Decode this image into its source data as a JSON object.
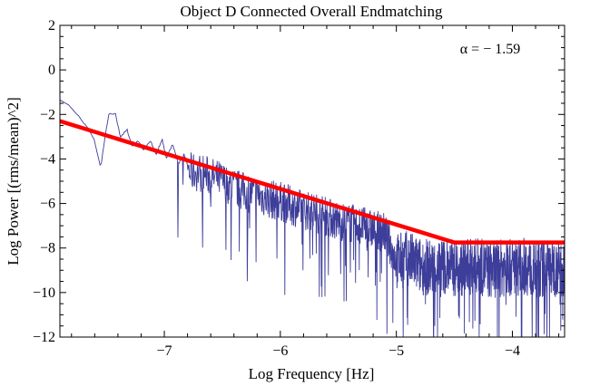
{
  "chart_data": {
    "type": "line",
    "title": "Object D Connected Overall Endmatching",
    "xlabel": "Log Frequency [Hz]",
    "ylabel": "Log Power [(rms/mean)^2]",
    "xlim": [
      -7.9,
      -3.55
    ],
    "ylim": [
      -12,
      2
    ],
    "xticks": [
      -7,
      -6,
      -5,
      -4
    ],
    "xtick_labels": [
      "−7",
      "−6",
      "−5",
      "−4"
    ],
    "yticks": [
      2,
      0,
      -2,
      -4,
      -6,
      -8,
      -10,
      -12
    ],
    "ytick_labels": [
      "2",
      "0",
      "−2",
      "−4",
      "−6",
      "−8",
      "−10",
      "−12"
    ],
    "annotation": "α = − 1.59",
    "series": [
      {
        "name": "power spectrum",
        "color": "#3d3d9a",
        "x": [
          -7.9,
          -7.78,
          -7.65,
          -7.6,
          -7.55,
          -7.48,
          -7.42,
          -7.38,
          -7.32,
          -7.28,
          -7.22,
          -7.18,
          -7.12,
          -7.07,
          -7.02,
          -6.98,
          -6.93,
          -6.88,
          -6.83,
          -6.78,
          -6.7,
          -6.6,
          -6.5,
          -6.4,
          -6.3,
          -6.2,
          -6.1,
          -6.0,
          -5.9,
          -5.8,
          -5.7,
          -5.6,
          -5.5,
          -5.4,
          -5.3,
          -5.2,
          -5.1,
          -5.0,
          -4.9,
          -4.8,
          -4.7,
          -4.6,
          -4.5,
          -4.4,
          -4.3,
          -4.2,
          -4.1,
          -4.0,
          -3.9,
          -3.8,
          -3.7,
          -3.6,
          -3.55
        ],
        "y": [
          -1.3,
          -1.8,
          -2.7,
          -3.2,
          -4.4,
          -2.0,
          -2.0,
          -3.0,
          -2.7,
          -3.4,
          -3.2,
          -3.6,
          -3.2,
          -3.8,
          -3.1,
          -4.0,
          -3.3,
          -4.2,
          -3.8,
          -4.6,
          -4.6,
          -4.8,
          -5.0,
          -5.3,
          -5.5,
          -5.6,
          -5.8,
          -5.9,
          -6.1,
          -6.3,
          -6.4,
          -6.6,
          -6.8,
          -6.9,
          -7.0,
          -7.2,
          -7.3,
          -8.6,
          -8.5,
          -8.8,
          -8.9,
          -8.8,
          -8.9,
          -8.9,
          -8.8,
          -9.0,
          -8.9,
          -8.9,
          -8.8,
          -9.0,
          -8.9,
          -8.9,
          -8.9
        ]
      },
      {
        "name": "broken power-law fit",
        "color": "#ff0000",
        "x": [
          -7.9,
          -4.5,
          -3.55
        ],
        "y": [
          -2.3,
          -7.75,
          -7.75
        ]
      }
    ]
  }
}
